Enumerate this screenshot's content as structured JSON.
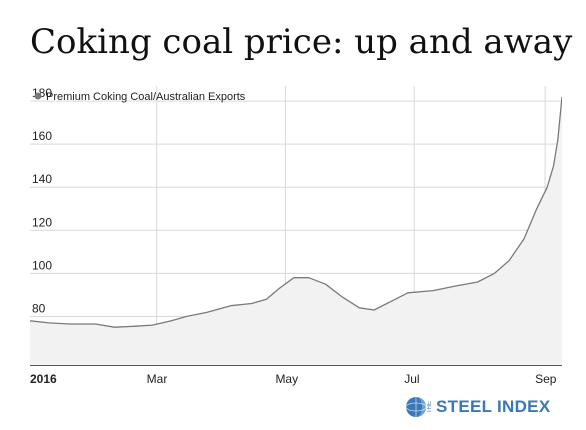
{
  "title": "Coking coal price: up and away",
  "logo": {
    "the": "THE",
    "name": "STEEL INDEX"
  },
  "colors": {
    "line": "#7a7a7a",
    "area": "#f2f2f2",
    "grid": "#d9d9d9",
    "axis": "#222222",
    "text": "#222222",
    "logo": "#3a78b8"
  },
  "chart_data": {
    "type": "area",
    "legend": {
      "label": "Premium Coking Coal/Australian Exports",
      "position": "top-left"
    },
    "x_tick_labels": [
      "2016",
      "Mar",
      "May",
      "Jul",
      "Sep"
    ],
    "x_ticks": [
      "2016-01-01",
      "2016-03-01",
      "2016-05-01",
      "2016-07-01",
      "2016-09-01"
    ],
    "xlim": [
      "2016-01-01",
      "2016-09-09"
    ],
    "ylim": [
      57,
      187
    ],
    "y_ticks": [
      60,
      80,
      100,
      120,
      140,
      160,
      180
    ],
    "grid": true,
    "series": [
      {
        "name": "Premium Coking Coal/Australian Exports",
        "points": [
          [
            "2016-01-01",
            78
          ],
          [
            "2016-01-10",
            77
          ],
          [
            "2016-01-20",
            76.5
          ],
          [
            "2016-02-01",
            76.5
          ],
          [
            "2016-02-10",
            75
          ],
          [
            "2016-02-20",
            75.5
          ],
          [
            "2016-02-28",
            76
          ],
          [
            "2016-03-08",
            78
          ],
          [
            "2016-03-15",
            80
          ],
          [
            "2016-03-25",
            82
          ],
          [
            "2016-04-05",
            85
          ],
          [
            "2016-04-15",
            86
          ],
          [
            "2016-04-22",
            88
          ],
          [
            "2016-04-28",
            93
          ],
          [
            "2016-05-05",
            98
          ],
          [
            "2016-05-12",
            98
          ],
          [
            "2016-05-20",
            95
          ],
          [
            "2016-05-28",
            89
          ],
          [
            "2016-06-05",
            84
          ],
          [
            "2016-06-12",
            83
          ],
          [
            "2016-06-20",
            87
          ],
          [
            "2016-06-28",
            91
          ],
          [
            "2016-07-10",
            92
          ],
          [
            "2016-07-20",
            94
          ],
          [
            "2016-07-31",
            96
          ],
          [
            "2016-08-08",
            100
          ],
          [
            "2016-08-15",
            106
          ],
          [
            "2016-08-22",
            116
          ],
          [
            "2016-08-28",
            130
          ],
          [
            "2016-09-02",
            140
          ],
          [
            "2016-09-05",
            150
          ],
          [
            "2016-09-07",
            162
          ],
          [
            "2016-09-09",
            182
          ]
        ]
      }
    ]
  }
}
